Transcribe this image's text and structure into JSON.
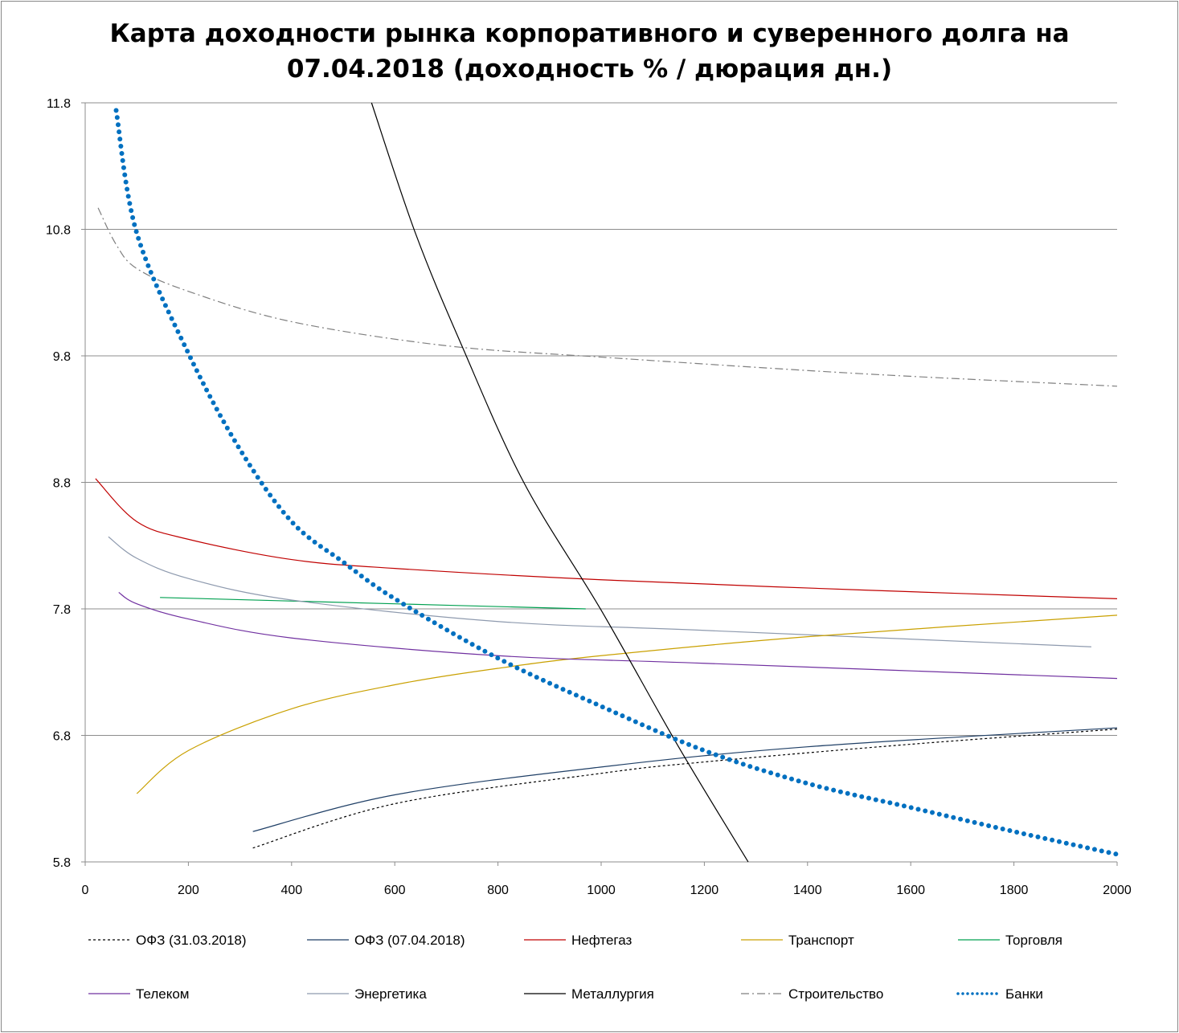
{
  "chart_data": {
    "type": "line",
    "title_line1": "Карта доходности рынка корпоративного и суверенного долга на",
    "title_line2": "07.04.2018 (доходность % / дюрация дн.)",
    "xlabel": "",
    "ylabel": "",
    "xlim": [
      0,
      2000
    ],
    "ylim": [
      5.8,
      11.8
    ],
    "xticks": [
      "0",
      "200",
      "400",
      "600",
      "800",
      "1000",
      "1200",
      "1400",
      "1600",
      "1800",
      "2000"
    ],
    "yticks": [
      "5.8",
      "6.8",
      "7.8",
      "8.8",
      "9.8",
      "10.8",
      "11.8"
    ],
    "grid": "horizontal",
    "legend_placement": "bottom",
    "series": [
      {
        "name": "ОФЗ (31.03.2018)",
        "color": "#000000",
        "style": "dashed",
        "x": [
          325,
          600,
          1000,
          1200,
          1600,
          2000
        ],
        "y": [
          5.91,
          6.26,
          6.5,
          6.59,
          6.73,
          6.85
        ]
      },
      {
        "name": "ОФЗ (07.04.2018)",
        "color": "#1f3f66",
        "style": "solid",
        "x": [
          325,
          600,
          1000,
          1400,
          2000
        ],
        "y": [
          6.04,
          6.33,
          6.55,
          6.71,
          6.86
        ]
      },
      {
        "name": "Нефтегаз",
        "color": "#c00000",
        "style": "solid",
        "x": [
          20,
          100,
          200,
          400,
          600,
          1000,
          1500,
          2000
        ],
        "y": [
          8.83,
          8.49,
          8.35,
          8.19,
          8.12,
          8.03,
          7.95,
          7.88
        ]
      },
      {
        "name": "Транспорт",
        "color": "#c9a000",
        "style": "solid",
        "x": [
          100,
          200,
          400,
          600,
          800,
          1000,
          1400,
          2000
        ],
        "y": [
          6.34,
          6.68,
          7.01,
          7.2,
          7.33,
          7.43,
          7.58,
          7.75
        ]
      },
      {
        "name": "Торговля",
        "color": "#00a050",
        "style": "solid",
        "x": [
          145,
          600,
          970
        ],
        "y": [
          7.89,
          7.84,
          7.8
        ]
      },
      {
        "name": "Телеком",
        "color": "#7030a0",
        "style": "solid",
        "x": [
          65,
          100,
          200,
          400,
          800,
          1200,
          2000
        ],
        "y": [
          7.93,
          7.84,
          7.72,
          7.57,
          7.43,
          7.37,
          7.25
        ]
      },
      {
        "name": "Энергетика",
        "color": "#8e9aae",
        "style": "solid",
        "x": [
          45,
          100,
          200,
          400,
          800,
          1200,
          1950
        ],
        "y": [
          8.37,
          8.2,
          8.04,
          7.87,
          7.7,
          7.63,
          7.5
        ]
      },
      {
        "name": "Металлургия",
        "color": "#000000",
        "style": "solid",
        "x": [
          555,
          640,
          730,
          850,
          1000,
          1150,
          1285
        ],
        "y": [
          11.8,
          10.77,
          9.88,
          8.8,
          7.79,
          6.71,
          5.8
        ]
      },
      {
        "name": "Строительство",
        "color": "#7f7f7f",
        "style": "dashdot",
        "x": [
          25,
          60,
          100,
          200,
          400,
          700,
          1000,
          1500,
          2000
        ],
        "y": [
          10.97,
          10.68,
          10.49,
          10.31,
          10.07,
          9.88,
          9.79,
          9.66,
          9.56
        ]
      },
      {
        "name": "Банки",
        "color": "#0070c0",
        "style": "dotted",
        "x": [
          60,
          100,
          200,
          300,
          400,
          500,
          600,
          800,
          1000,
          1200,
          1400,
          1600,
          1800,
          2000
        ],
        "y": [
          11.74,
          10.77,
          9.82,
          9.06,
          8.49,
          8.17,
          7.88,
          7.41,
          7.03,
          6.68,
          6.42,
          6.23,
          6.04,
          5.86
        ]
      }
    ]
  }
}
